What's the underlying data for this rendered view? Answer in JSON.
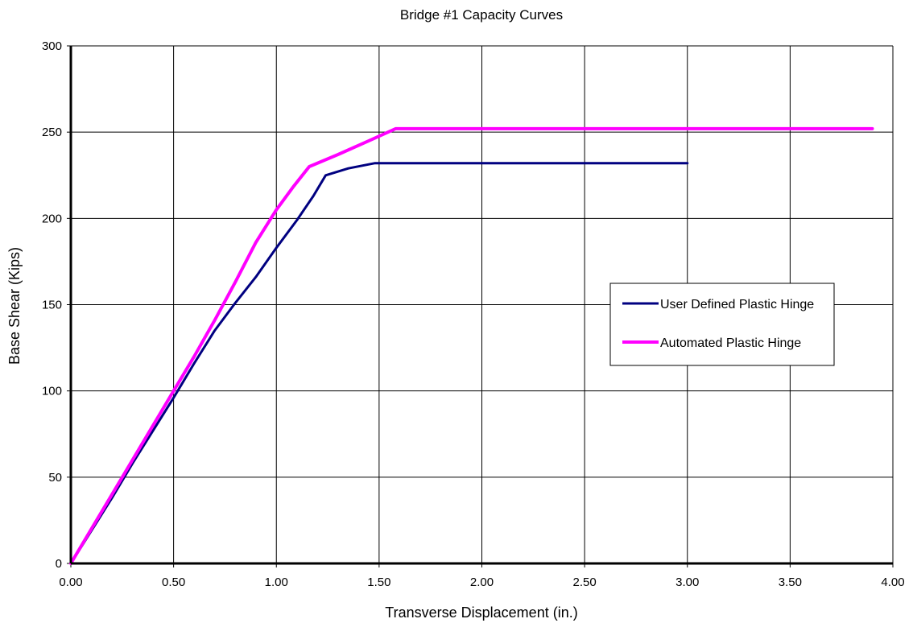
{
  "chart_data": {
    "type": "line",
    "title": "Bridge #1 Capacity Curves",
    "xlabel": "Transverse Displacement (in.)",
    "ylabel": "Base Shear (Kips)",
    "xlim": [
      0,
      4
    ],
    "ylim": [
      0,
      300
    ],
    "x_ticks": [
      "0.00",
      "0.50",
      "1.00",
      "1.50",
      "2.00",
      "2.50",
      "3.00",
      "3.50",
      "4.00"
    ],
    "y_ticks": [
      "0",
      "50",
      "100",
      "150",
      "200",
      "250",
      "300"
    ],
    "grid": true,
    "legend_position": "right",
    "series": [
      {
        "name": "User Defined Plastic Hinge",
        "color": "#000080",
        "x": [
          0,
          0.1,
          0.2,
          0.3,
          0.4,
          0.5,
          0.6,
          0.7,
          0.8,
          0.9,
          1.0,
          1.1,
          1.18,
          1.24,
          1.35,
          1.48,
          1.6,
          2.0,
          2.5,
          3.0
        ],
        "y": [
          0,
          19,
          38,
          58,
          77,
          96,
          116,
          135,
          151,
          166,
          183,
          199,
          213,
          225,
          229,
          232,
          232,
          232,
          232,
          232
        ]
      },
      {
        "name": "Automated Plastic Hinge",
        "color": "#ff00ff",
        "x": [
          0,
          0.1,
          0.2,
          0.3,
          0.4,
          0.5,
          0.6,
          0.7,
          0.8,
          0.9,
          1.0,
          1.08,
          1.16,
          1.3,
          1.45,
          1.58,
          2.0,
          2.5,
          3.0,
          3.5,
          3.9
        ],
        "y": [
          0,
          20,
          40,
          60,
          80,
          100,
          120,
          141,
          163,
          186,
          205,
          218,
          230,
          237,
          245,
          252,
          252,
          252,
          252,
          252,
          252
        ]
      }
    ]
  }
}
